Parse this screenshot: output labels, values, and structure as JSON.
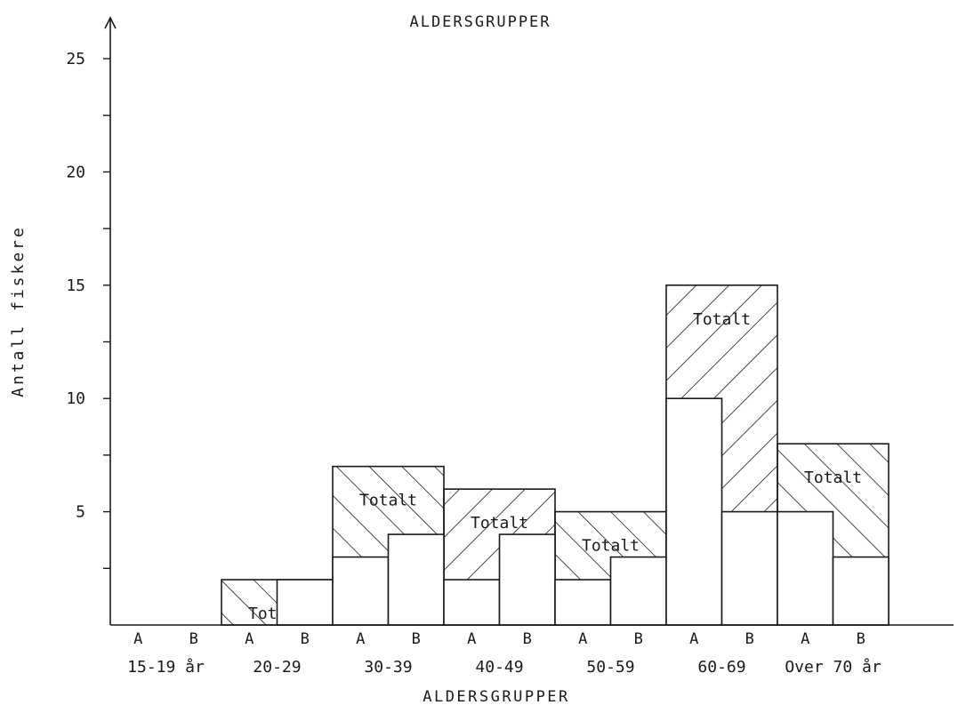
{
  "chart_data": {
    "type": "bar",
    "title": "ALDERSGRUPPER",
    "xlabel": "ALDERSGRUPPER",
    "ylabel": "Antall fiskere",
    "ylim": [
      0,
      25
    ],
    "yticks": [
      5,
      10,
      15,
      20,
      25
    ],
    "grid": false,
    "groups": [
      "15-19 år",
      "20-29",
      "30-39",
      "40-49",
      "50-59",
      "60-69",
      "Over 70 år"
    ],
    "subcategories": [
      "A",
      "B"
    ],
    "total_label": "Totalt",
    "series": [
      {
        "name": "A",
        "values": [
          0,
          0,
          3,
          2,
          2,
          10,
          5
        ]
      },
      {
        "name": "B",
        "values": [
          0,
          2,
          4,
          4,
          3,
          5,
          3
        ]
      },
      {
        "name": "Totalt",
        "values": [
          0,
          2,
          7,
          6,
          5,
          15,
          8
        ]
      }
    ],
    "hatch_directions": [
      "",
      "",
      "\\",
      "/",
      "\\",
      "/",
      "\\"
    ]
  }
}
